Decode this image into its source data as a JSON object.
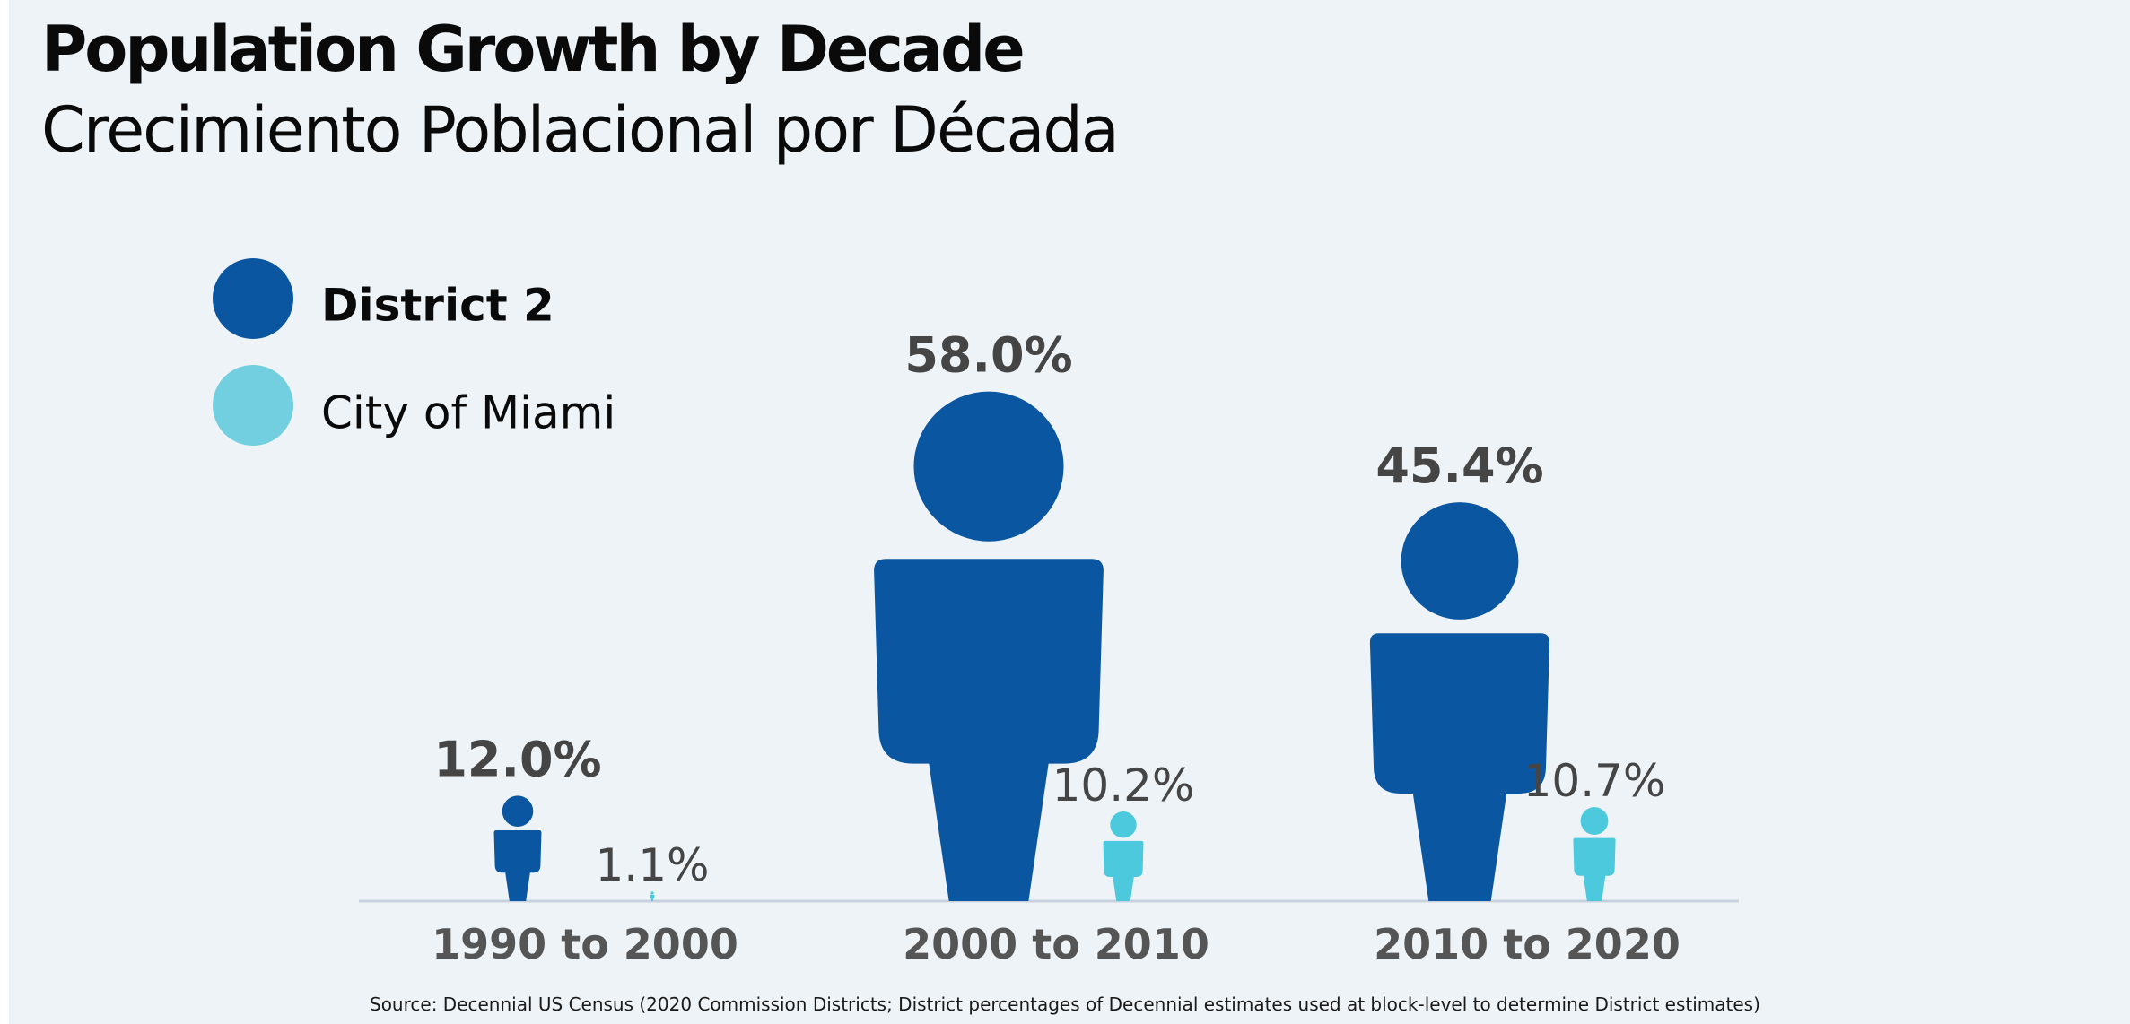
{
  "header": {
    "title": "Population Growth by Decade",
    "subtitle": "Crecimiento Poblacional por Década"
  },
  "source": "Source:  Decennial US Census (2020 Commission Districts; District percentages of Decennial estimates used at block-level to determine District estimates)",
  "colors": {
    "district": "#0b56a0",
    "city": "#4cc9dc",
    "city_legend": "#72cfe0",
    "value_text": "#454545",
    "category_text": "#555555",
    "baseline": "#c8d2de"
  },
  "chart_data": {
    "type": "bar",
    "encoding": "person pictograms scaled to value",
    "categories": [
      "1990 to 2000",
      "2000 to 2010",
      "2010 to 2020"
    ],
    "series": [
      {
        "name": "District 2",
        "values": [
          12.0,
          58.0,
          45.4
        ],
        "labels": [
          "12.0%",
          "58.0%",
          "45.4%"
        ],
        "color": "#0b56a0"
      },
      {
        "name": "City of Miami",
        "values": [
          1.1,
          10.2,
          10.7
        ],
        "labels": [
          "1.1%",
          "10.2%",
          "10.7%"
        ],
        "color": "#4cc9dc"
      }
    ],
    "title": "Population Growth by Decade",
    "subtitle": "Crecimiento Poblacional por Década",
    "legend": "top-left",
    "grid": false
  }
}
